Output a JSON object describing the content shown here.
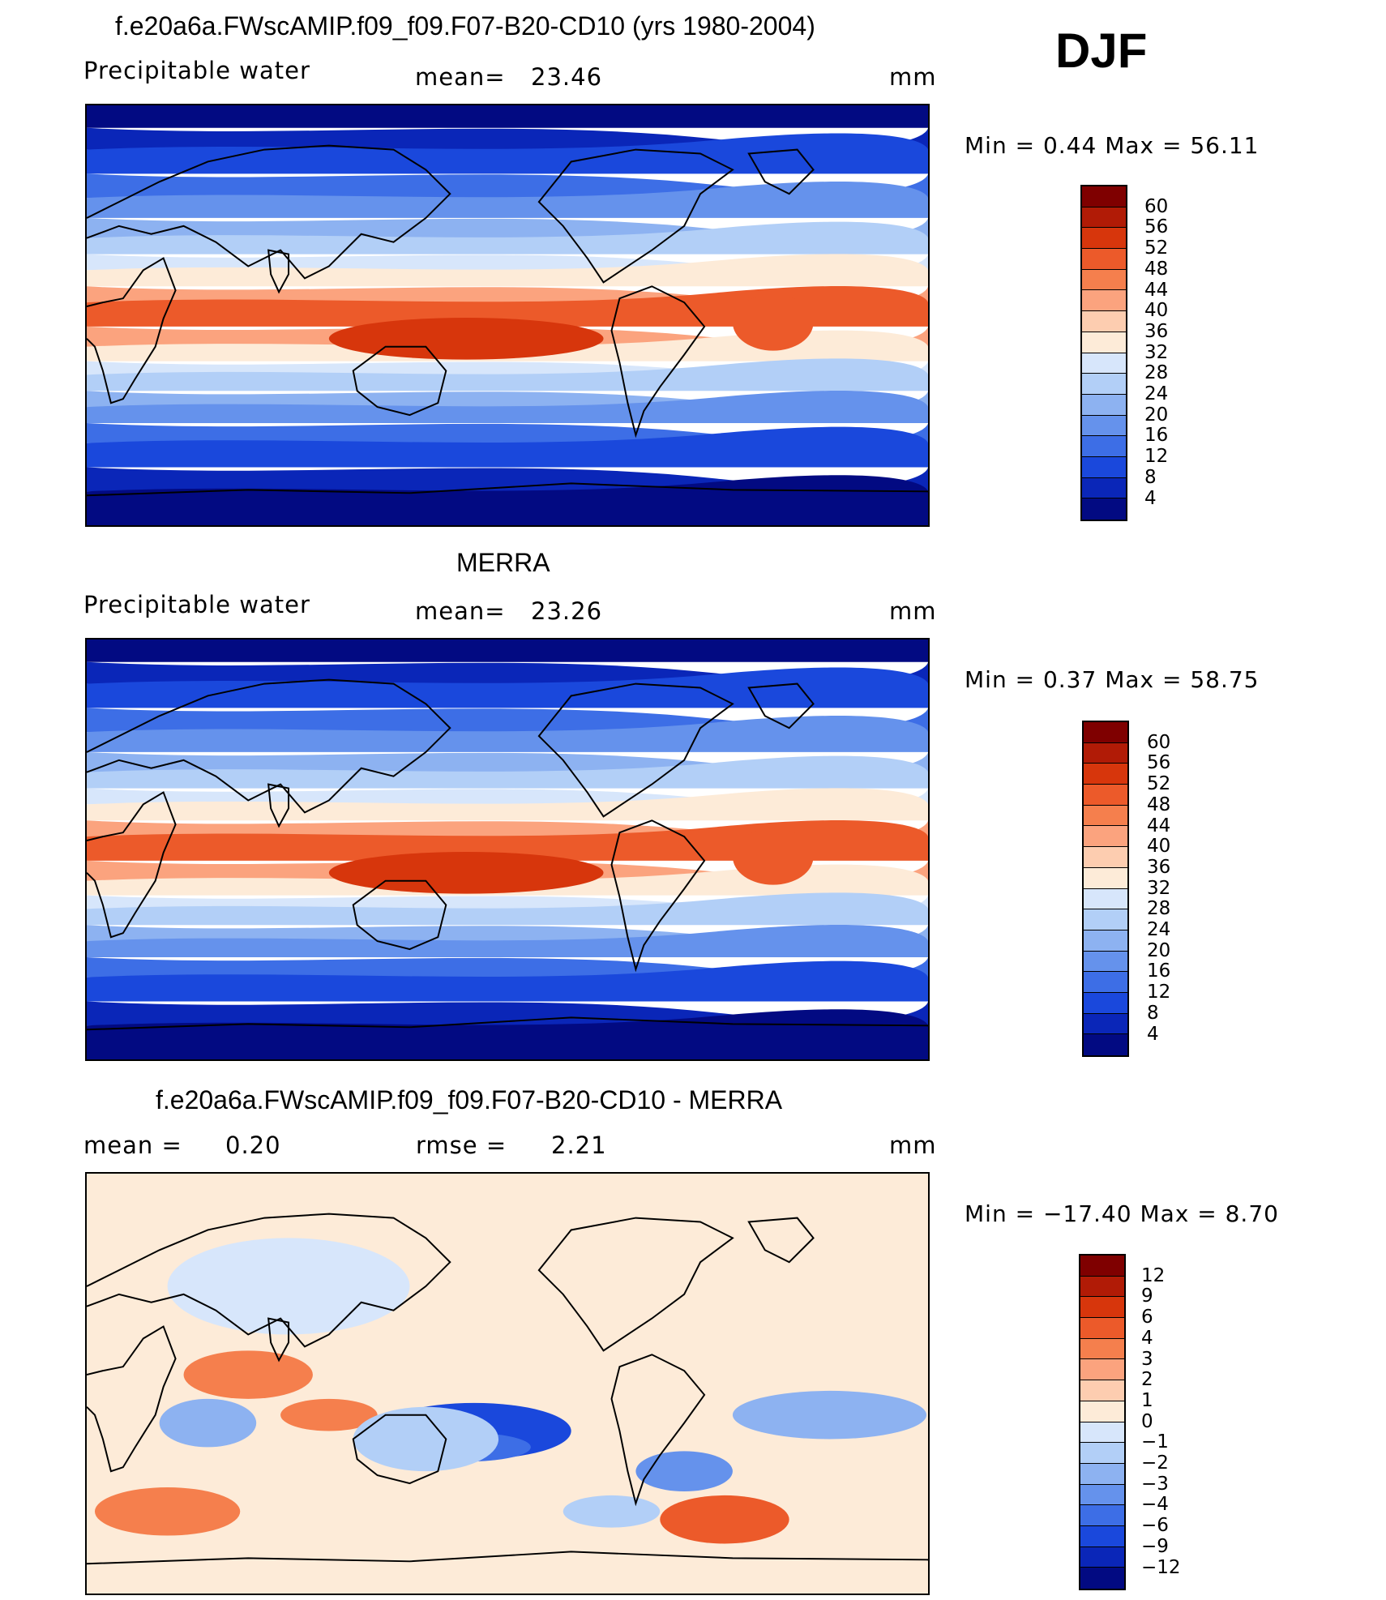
{
  "season": "DJF",
  "panels": [
    {
      "title": "f.e20a6a.FWscAMIP.f09_f09.F07-B20-CD10 (yrs 1980-2004)",
      "left_label": "Precipitable  water",
      "mid_label": "mean=",
      "mid_value": "23.46",
      "units": "mm",
      "minmax_label": "Min  =     0.44  Max  =     56.11",
      "colorbar": {
        "labels": [
          "60",
          "56",
          "52",
          "48",
          "44",
          "40",
          "36",
          "32",
          "28",
          "24",
          "20",
          "16",
          "12",
          "8",
          "4"
        ],
        "colors": [
          "#7f0000",
          "#b11b06",
          "#d7360c",
          "#ec5a2a",
          "#f57f4d",
          "#fba37e",
          "#fdcdb0",
          "#fdebd8",
          "#d7e6fb",
          "#b2cff7",
          "#8db2f1",
          "#6592ec",
          "#3d6ee6",
          "#1a48dc",
          "#0a26b8",
          "#020a82"
        ]
      },
      "map_palette": "seq"
    },
    {
      "title": "MERRA",
      "left_label": "Precipitable  water",
      "mid_label": "mean=",
      "mid_value": "23.26",
      "units": "mm",
      "minmax_label": "Min  =     0.37  Max  =     58.75",
      "colorbar": {
        "labels": [
          "60",
          "56",
          "52",
          "48",
          "44",
          "40",
          "36",
          "32",
          "28",
          "24",
          "20",
          "16",
          "12",
          "8",
          "4"
        ],
        "colors": [
          "#7f0000",
          "#b11b06",
          "#d7360c",
          "#ec5a2a",
          "#f57f4d",
          "#fba37e",
          "#fdcdb0",
          "#fdebd8",
          "#d7e6fb",
          "#b2cff7",
          "#8db2f1",
          "#6592ec",
          "#3d6ee6",
          "#1a48dc",
          "#0a26b8",
          "#020a82"
        ]
      },
      "map_palette": "seq"
    },
    {
      "title": "f.e20a6a.FWscAMIP.f09_f09.F07-B20-CD10 - MERRA",
      "left_label": "mean  =",
      "left_value": "0.20",
      "mid_label": "rmse  =",
      "mid_value": "2.21",
      "units": "mm",
      "minmax_label": "Min  = −17.40  Max  =       8.70",
      "colorbar": {
        "labels": [
          "12",
          "9",
          "6",
          "4",
          "3",
          "2",
          "1",
          "0",
          "−1",
          "−2",
          "−3",
          "−4",
          "−6",
          "−9",
          "−12"
        ],
        "colors": [
          "#7f0000",
          "#b11b06",
          "#d7360c",
          "#ec5a2a",
          "#f57f4d",
          "#fba37e",
          "#fdcdb0",
          "#fdebd8",
          "#d7e6fb",
          "#b2cff7",
          "#8db2f1",
          "#6592ec",
          "#3d6ee6",
          "#1a48dc",
          "#0a26b8",
          "#020a82"
        ]
      },
      "map_palette": "diff"
    }
  ]
}
